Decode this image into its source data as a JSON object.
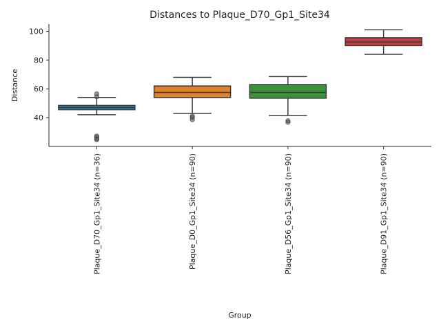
{
  "chart_data": {
    "type": "box",
    "title": "Distances to Plaque_D70_Gp1_Site34",
    "xlabel": "Group",
    "ylabel": "Distance",
    "ylim": [
      20,
      105
    ],
    "yticks": [
      40,
      60,
      80,
      100
    ],
    "grid": false,
    "categories": [
      "Plaque_D70_Gp1_Site34 (n=36)",
      "Plaque_D0_Gp1_Site34 (n=90)",
      "Plaque_D56_Gp1_Site34 (n=90)",
      "Plaque_D91_Gp1_Site34 (n=90)"
    ],
    "colors": [
      "#3274a1",
      "#e1812c",
      "#3a923a",
      "#c03d3e"
    ],
    "boxes": [
      {
        "whislo": 42,
        "q1": 45.5,
        "med": 47,
        "q3": 48.5,
        "whishi": 54,
        "fliers": [
          56.5,
          54.5,
          27.2,
          26.5,
          25.2,
          24.8
        ]
      },
      {
        "whislo": 43,
        "q1": 54,
        "med": 57.5,
        "q3": 62,
        "whishi": 68,
        "fliers": [
          41,
          40.2,
          38.6
        ]
      },
      {
        "whislo": 41.5,
        "q1": 53.5,
        "med": 57.5,
        "q3": 63,
        "whishi": 68.5,
        "fliers": [
          37.8,
          36.8
        ]
      },
      {
        "whislo": 84,
        "q1": 90,
        "med": 92.5,
        "q3": 95.5,
        "whishi": 101,
        "fliers": []
      }
    ]
  }
}
